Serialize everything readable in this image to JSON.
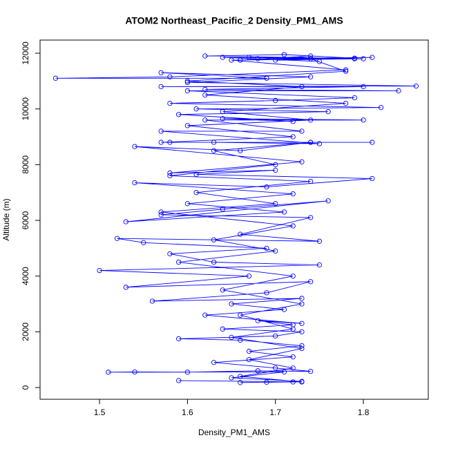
{
  "chart_data": {
    "type": "line",
    "title": "ATOM2 Northeast_Pacific_2 Density_PM1_AMS",
    "x_label": "Density_PM1_AMS",
    "y_label": "Altitude (m)",
    "color": "#0000ff",
    "marker": "open-circle",
    "xlim": [
      1.4324,
      1.8738
    ],
    "ylim": [
      -421,
      12471
    ],
    "xticks": [
      1.5,
      1.6,
      1.7,
      1.8
    ],
    "yticks": [
      0,
      2000,
      4000,
      6000,
      8000,
      10000,
      12000
    ],
    "x": [
      1.72,
      1.66,
      1.69,
      1.73,
      1.65,
      1.71,
      1.51,
      1.54,
      1.6,
      1.68,
      1.74,
      1.7,
      1.63,
      1.72,
      1.67,
      1.73,
      1.66,
      1.59,
      1.7,
      1.73,
      1.64,
      1.72,
      1.68,
      1.73,
      1.62,
      1.71,
      1.65,
      1.73,
      1.56,
      1.69,
      1.74,
      1.53,
      1.67,
      1.5,
      1.75,
      1.63,
      1.58,
      1.69,
      1.55,
      1.52,
      1.75,
      1.66,
      1.74,
      1.57,
      1.64,
      1.76,
      1.53,
      1.71,
      1.6,
      1.72,
      1.54,
      1.69,
      1.81,
      1.61,
      1.7,
      1.58,
      1.73,
      1.54,
      1.66,
      1.74,
      1.58,
      1.81,
      1.63,
      1.75,
      1.57,
      1.73,
      1.62,
      1.8,
      1.64,
      1.72,
      1.59,
      1.76,
      1.61,
      1.82,
      1.58,
      1.7,
      1.79,
      1.6,
      1.84,
      1.62,
      1.8,
      1.57,
      1.86,
      1.6,
      1.74,
      1.57,
      1.69,
      1.45,
      1.58,
      1.78,
      1.65,
      1.8,
      1.62,
      1.71,
      1.79,
      1.64,
      1.75,
      1.68,
      1.81,
      1.66,
      1.74,
      1.7,
      1.79,
      1.67,
      1.74,
      1.78,
      1.6,
      1.73,
      1.62,
      1.78,
      1.64,
      1.74,
      1.6,
      1.72,
      1.57,
      1.74,
      1.63,
      1.7,
      1.58,
      1.74,
      1.61,
      1.7,
      1.57,
      1.72,
      1.63,
      1.7,
      1.59,
      1.72,
      1.64,
      1.73,
      1.66,
      1.72,
      1.65,
      1.73,
      1.67,
      1.72,
      1.66,
      1.73,
      1.59
    ],
    "y": [
      200,
      180,
      190,
      220,
      350,
      560,
      550,
      560,
      550,
      600,
      580,
      700,
      900,
      1100,
      1300,
      1500,
      1700,
      1750,
      1850,
      2000,
      2100,
      2250,
      2400,
      2300,
      2600,
      2800,
      3000,
      3200,
      3100,
      3400,
      3800,
      3600,
      4000,
      4200,
      4400,
      4500,
      4800,
      5000,
      5200,
      5350,
      5250,
      5500,
      6100,
      6200,
      6400,
      6700,
      5950,
      6300,
      6600,
      6950,
      7350,
      7200,
      7500,
      7650,
      7800,
      7700,
      8100,
      8650,
      8500,
      8800,
      8800,
      8800,
      8800,
      8750,
      9200,
      9200,
      9600,
      9600,
      9650,
      9550,
      9800,
      9900,
      10000,
      10050,
      10200,
      10300,
      10400,
      10650,
      10650,
      10700,
      10800,
      10800,
      10820,
      10950,
      11150,
      11300,
      11100,
      11100,
      11150,
      11400,
      11750,
      11800,
      11900,
      11950,
      11820,
      11850,
      11700,
      11800,
      11850,
      11750,
      11900,
      11750,
      11800,
      11850,
      11800,
      11350,
      11000,
      10800,
      10500,
      10200,
      9900,
      9600,
      9400,
      9000,
      8800,
      8800,
      8500,
      8000,
      7600,
      7400,
      7000,
      6600,
      6300,
      5800,
      5300,
      4900,
      4500,
      4000,
      3500,
      3000,
      2600,
      2100,
      1800,
      1400,
      1000,
      700,
      400,
      200,
      250
    ]
  }
}
